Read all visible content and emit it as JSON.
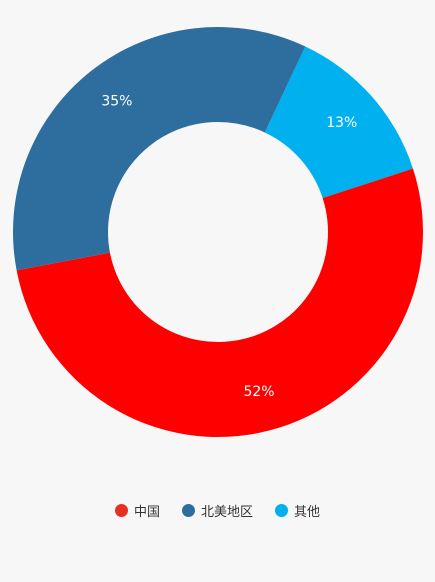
{
  "chart_data": {
    "type": "pie",
    "variant": "donut",
    "title": "",
    "legend_position": "bottom",
    "slices": [
      {
        "name": "中国",
        "value": 52,
        "label": "52%",
        "color": "#ff0000"
      },
      {
        "name": "北美地区",
        "value": 35,
        "label": "35%",
        "color": "#2d6e9e"
      },
      {
        "name": "其他",
        "value": 13,
        "label": "13%",
        "color": "#00b0ef"
      }
    ]
  }
}
